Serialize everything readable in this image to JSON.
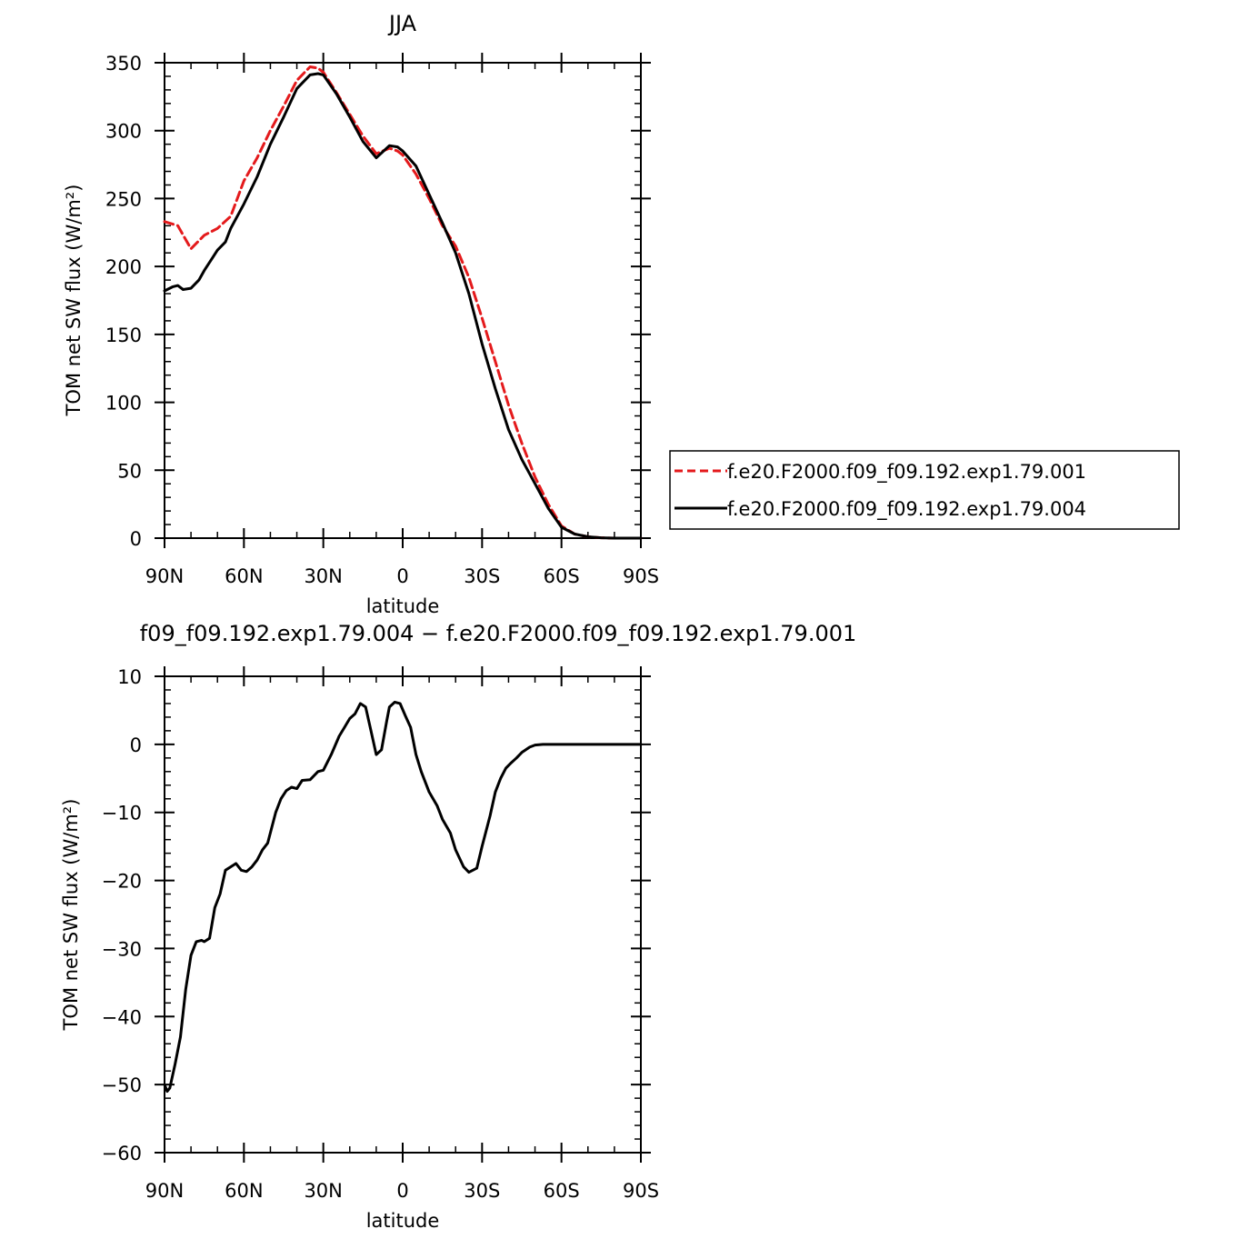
{
  "chart_data": [
    {
      "type": "line",
      "title": "JJA",
      "xlabel": "latitude",
      "ylabel": "TOM net SW flux (W/m²)",
      "xlim": [
        90,
        -90
      ],
      "ylim": [
        0,
        350
      ],
      "x_ticks": [
        {
          "value": 90,
          "label": "90N"
        },
        {
          "value": 60,
          "label": "60N"
        },
        {
          "value": 30,
          "label": "30N"
        },
        {
          "value": 0,
          "label": "0"
        },
        {
          "value": -30,
          "label": "30S"
        },
        {
          "value": -60,
          "label": "60S"
        },
        {
          "value": -90,
          "label": "90S"
        }
      ],
      "y_ticks": [
        {
          "value": 0,
          "label": "0"
        },
        {
          "value": 50,
          "label": "50"
        },
        {
          "value": 100,
          "label": "100"
        },
        {
          "value": 150,
          "label": "150"
        },
        {
          "value": 200,
          "label": "200"
        },
        {
          "value": 250,
          "label": "250"
        },
        {
          "value": 300,
          "label": "300"
        },
        {
          "value": 350,
          "label": "350"
        }
      ],
      "legend_position": "right",
      "series": [
        {
          "name": "f.e20.F2000.f09_f09.192.exp1.79.001",
          "color": "#e41a1c",
          "dash": "dashed",
          "x": [
            90,
            85,
            80,
            75,
            70,
            65,
            60,
            55,
            50,
            45,
            40,
            35,
            32,
            30,
            25,
            20,
            15,
            10,
            5,
            2,
            0,
            -5,
            -10,
            -15,
            -20,
            -25,
            -30,
            -35,
            -40,
            -45,
            -50,
            -55,
            -60,
            -65,
            -70,
            -75,
            -80,
            -85,
            -90
          ],
          "y": [
            233,
            230,
            213,
            223,
            228,
            237,
            263,
            280,
            300,
            318,
            337,
            347,
            346,
            343,
            328,
            312,
            296,
            283,
            287,
            285,
            282,
            268,
            250,
            230,
            215,
            192,
            162,
            130,
            98,
            70,
            45,
            25,
            9,
            3,
            1,
            0.3,
            0,
            0,
            0
          ]
        },
        {
          "name": "f.e20.F2000.f09_f09.192.exp1.79.004",
          "color": "#000000",
          "dash": "solid",
          "x": [
            90,
            87,
            85,
            83,
            80,
            77,
            75,
            72,
            70,
            67,
            65,
            60,
            55,
            50,
            45,
            40,
            35,
            32,
            30,
            25,
            20,
            15,
            10,
            5,
            2,
            0,
            -5,
            -10,
            -15,
            -20,
            -25,
            -30,
            -35,
            -40,
            -45,
            -50,
            -55,
            -60,
            -65,
            -70,
            -75,
            -80,
            -85,
            -90
          ],
          "y": [
            182,
            185,
            186,
            183,
            184,
            190,
            197,
            206,
            212,
            218,
            228,
            246,
            266,
            290,
            310,
            331,
            341,
            342,
            341,
            327,
            310,
            292,
            280,
            289,
            288,
            285,
            274,
            253,
            232,
            210,
            180,
            143,
            110,
            80,
            58,
            40,
            22,
            8,
            3,
            1,
            0.3,
            0,
            0,
            0
          ]
        }
      ]
    },
    {
      "type": "line",
      "title": "f09_f09.192.exp1.79.004 − f.e20.F2000.f09_f09.192.exp1.79.001",
      "xlabel": "latitude",
      "ylabel": "TOM net SW flux (W/m²)",
      "xlim": [
        90,
        -90
      ],
      "ylim": [
        -60,
        10
      ],
      "x_ticks": [
        {
          "value": 90,
          "label": "90N"
        },
        {
          "value": 60,
          "label": "60N"
        },
        {
          "value": 30,
          "label": "30N"
        },
        {
          "value": 0,
          "label": "0"
        },
        {
          "value": -30,
          "label": "30S"
        },
        {
          "value": -60,
          "label": "60S"
        },
        {
          "value": -90,
          "label": "90S"
        }
      ],
      "y_ticks": [
        {
          "value": 10,
          "label": "10"
        },
        {
          "value": 0,
          "label": "0"
        },
        {
          "value": -10,
          "label": "−10"
        },
        {
          "value": -20,
          "label": "−20"
        },
        {
          "value": -30,
          "label": "−30"
        },
        {
          "value": -40,
          "label": "−40"
        },
        {
          "value": -50,
          "label": "−50"
        },
        {
          "value": -60,
          "label": "−60"
        }
      ],
      "series": [
        {
          "color": "#000000",
          "dash": "solid",
          "x": [
            90,
            89,
            88,
            86,
            84,
            82,
            80,
            78,
            76,
            75,
            73,
            71,
            69,
            67,
            65,
            63,
            61,
            59,
            57,
            55,
            53,
            51,
            48,
            46,
            44,
            42,
            40,
            38,
            35,
            32,
            30,
            27,
            24,
            22,
            20,
            18,
            16,
            14,
            12,
            10,
            8,
            6,
            5,
            3,
            1,
            -1,
            -3,
            -5,
            -7,
            -10,
            -13,
            -15,
            -18,
            -20,
            -23,
            -25,
            -28,
            -30,
            -33,
            -35,
            -37,
            -39,
            -41,
            -43,
            -45,
            -48,
            -50,
            -53,
            -55,
            -58,
            -60,
            -63,
            -65,
            -68,
            -70,
            -75,
            -80,
            -85,
            -90
          ],
          "y": [
            -50,
            -51,
            -50.5,
            -47,
            -43,
            -36,
            -31,
            -29,
            -28.8,
            -29,
            -28.5,
            -24,
            -22,
            -18.5,
            -18,
            -17.5,
            -18.5,
            -18.7,
            -18,
            -17,
            -15.5,
            -14.5,
            -10,
            -8,
            -6.8,
            -6.3,
            -6.5,
            -5.3,
            -5.2,
            -4,
            -3.8,
            -1.5,
            1.2,
            2.5,
            3.8,
            4.5,
            6,
            5.5,
            2,
            -1.5,
            -0.8,
            3.5,
            5.5,
            6.2,
            6,
            4.2,
            2.5,
            -1.5,
            -4,
            -7,
            -9,
            -11,
            -13,
            -15.5,
            -18,
            -18.8,
            -18.2,
            -15,
            -10.5,
            -7,
            -5,
            -3.5,
            -2.7,
            -2,
            -1.2,
            -0.4,
            -0.1,
            0,
            0,
            0,
            0,
            0,
            0,
            0,
            0,
            0,
            0,
            0,
            0
          ]
        }
      ]
    }
  ]
}
